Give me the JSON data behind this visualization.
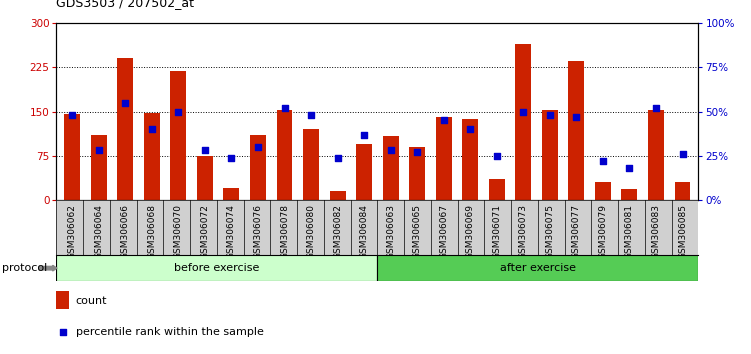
{
  "title": "GDS3503 / 207502_at",
  "categories": [
    "GSM306062",
    "GSM306064",
    "GSM306066",
    "GSM306068",
    "GSM306070",
    "GSM306072",
    "GSM306074",
    "GSM306076",
    "GSM306078",
    "GSM306080",
    "GSM306082",
    "GSM306084",
    "GSM306063",
    "GSM306065",
    "GSM306067",
    "GSM306069",
    "GSM306071",
    "GSM306073",
    "GSM306075",
    "GSM306077",
    "GSM306079",
    "GSM306081",
    "GSM306083",
    "GSM306085"
  ],
  "count_values": [
    145,
    110,
    240,
    147,
    218,
    75,
    20,
    110,
    152,
    120,
    15,
    95,
    108,
    90,
    140,
    138,
    35,
    265,
    152,
    235,
    30,
    18,
    152,
    30
  ],
  "percentile_values": [
    48,
    28,
    55,
    40,
    50,
    28,
    24,
    30,
    52,
    48,
    24,
    37,
    28,
    27,
    45,
    40,
    25,
    50,
    48,
    47,
    22,
    18,
    52,
    26
  ],
  "before_exercise_count": 12,
  "after_exercise_count": 12,
  "left_yaxis_color": "#cc0000",
  "right_yaxis_color": "#0000cc",
  "bar_color": "#cc2200",
  "dot_color": "#0000cc",
  "ylim_left": [
    0,
    300
  ],
  "ylim_right": [
    0,
    100
  ],
  "yticks_left": [
    0,
    75,
    150,
    225,
    300
  ],
  "yticks_right": [
    0,
    25,
    50,
    75,
    100
  ],
  "grid_dotted_values": [
    75,
    150,
    225
  ],
  "before_exercise_color": "#ccffcc",
  "after_exercise_color": "#55cc55",
  "protocol_label": "protocol",
  "before_label": "before exercise",
  "after_label": "after exercise",
  "legend_count_label": "count",
  "legend_percentile_label": "percentile rank within the sample",
  "xtick_bg_color": "#d0d0d0"
}
